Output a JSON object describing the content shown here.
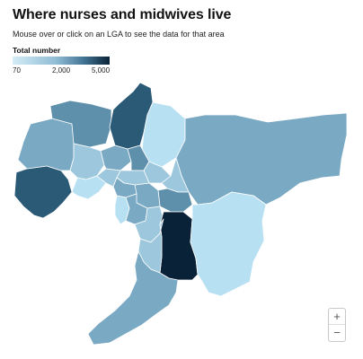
{
  "header": {
    "title": "Where nurses and midwives live",
    "subtitle": "Mouse over or click on an LGA to see the data for that area"
  },
  "legend": {
    "title": "Total number",
    "ticks": [
      "70",
      "2,000",
      "5,000"
    ],
    "min_color": "#cfe8f3",
    "max_color": "#0a2a45"
  },
  "zoom": {
    "in_label": "+",
    "out_label": "−"
  },
  "colors": {
    "lightest": "#b7e0f2",
    "light": "#9cc7dd",
    "mid": "#7aa9c4",
    "midDark": "#5e8fab",
    "dark": "#3d6f8d",
    "darker": "#2b5a77",
    "darkest": "#0a2238"
  }
}
